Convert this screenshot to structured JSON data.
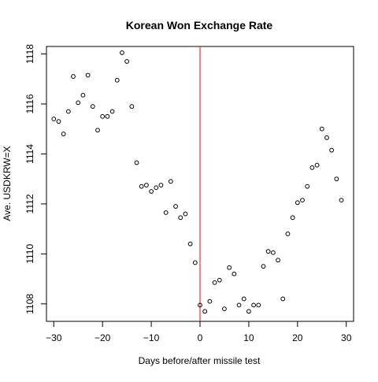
{
  "chart_data": {
    "type": "scatter",
    "title": "Korean Won Exchange Rate",
    "xlabel": "Days before/after missile test",
    "ylabel": "Ave. USDKRW=X",
    "xlim": [
      -31.5,
      31.5
    ],
    "ylim": [
      1107.3,
      1118.3
    ],
    "x_ticks": [
      -30,
      -20,
      -10,
      0,
      10,
      20,
      30
    ],
    "y_ticks": [
      1108,
      1110,
      1112,
      1114,
      1116,
      1118
    ],
    "grid": false,
    "marker": "open-circle",
    "reference_line": {
      "x": 0,
      "color": "#ff0000"
    },
    "points": [
      {
        "x": -30,
        "y": 1115.4
      },
      {
        "x": -29,
        "y": 1115.3
      },
      {
        "x": -28,
        "y": 1114.8
      },
      {
        "x": -27,
        "y": 1115.7
      },
      {
        "x": -26,
        "y": 1117.1
      },
      {
        "x": -25,
        "y": 1116.05
      },
      {
        "x": -24,
        "y": 1116.35
      },
      {
        "x": -23,
        "y": 1117.15
      },
      {
        "x": -22,
        "y": 1115.9
      },
      {
        "x": -21,
        "y": 1114.95
      },
      {
        "x": -20,
        "y": 1115.5
      },
      {
        "x": -19,
        "y": 1115.5
      },
      {
        "x": -18,
        "y": 1115.7
      },
      {
        "x": -17,
        "y": 1116.95
      },
      {
        "x": -16,
        "y": 1118.05
      },
      {
        "x": -15,
        "y": 1117.7
      },
      {
        "x": -14,
        "y": 1115.9
      },
      {
        "x": -13,
        "y": 1113.65
      },
      {
        "x": -12,
        "y": 1112.7
      },
      {
        "x": -11,
        "y": 1112.75
      },
      {
        "x": -10,
        "y": 1112.5
      },
      {
        "x": -9,
        "y": 1112.65
      },
      {
        "x": -8,
        "y": 1112.75
      },
      {
        "x": -7,
        "y": 1111.65
      },
      {
        "x": -6,
        "y": 1112.9
      },
      {
        "x": -5,
        "y": 1111.9
      },
      {
        "x": -4,
        "y": 1111.45
      },
      {
        "x": -3,
        "y": 1111.6
      },
      {
        "x": -2,
        "y": 1110.4
      },
      {
        "x": -1,
        "y": 1109.65
      },
      {
        "x": 0,
        "y": 1107.95
      },
      {
        "x": 1,
        "y": 1107.7
      },
      {
        "x": 2,
        "y": 1108.1
      },
      {
        "x": 3,
        "y": 1108.85
      },
      {
        "x": 4,
        "y": 1108.95
      },
      {
        "x": 5,
        "y": 1107.8
      },
      {
        "x": 6,
        "y": 1109.45
      },
      {
        "x": 7,
        "y": 1109.2
      },
      {
        "x": 8,
        "y": 1107.95
      },
      {
        "x": 9,
        "y": 1108.2
      },
      {
        "x": 10,
        "y": 1107.7
      },
      {
        "x": 11,
        "y": 1107.95
      },
      {
        "x": 12,
        "y": 1107.95
      },
      {
        "x": 13,
        "y": 1109.5
      },
      {
        "x": 14,
        "y": 1110.1
      },
      {
        "x": 15,
        "y": 1110.05
      },
      {
        "x": 16,
        "y": 1109.75
      },
      {
        "x": 17,
        "y": 1108.2
      },
      {
        "x": 18,
        "y": 1110.8
      },
      {
        "x": 19,
        "y": 1111.45
      },
      {
        "x": 20,
        "y": 1112.05
      },
      {
        "x": 21,
        "y": 1112.15
      },
      {
        "x": 22,
        "y": 1112.7
      },
      {
        "x": 23,
        "y": 1113.45
      },
      {
        "x": 24,
        "y": 1113.55
      },
      {
        "x": 25,
        "y": 1115.0
      },
      {
        "x": 26,
        "y": 1114.65
      },
      {
        "x": 27,
        "y": 1114.15
      },
      {
        "x": 28,
        "y": 1113.0
      },
      {
        "x": 29,
        "y": 1112.15
      }
    ]
  },
  "colors": {
    "reference_line": "#ff0000",
    "axis": "#000000",
    "background": "#ffffff"
  }
}
